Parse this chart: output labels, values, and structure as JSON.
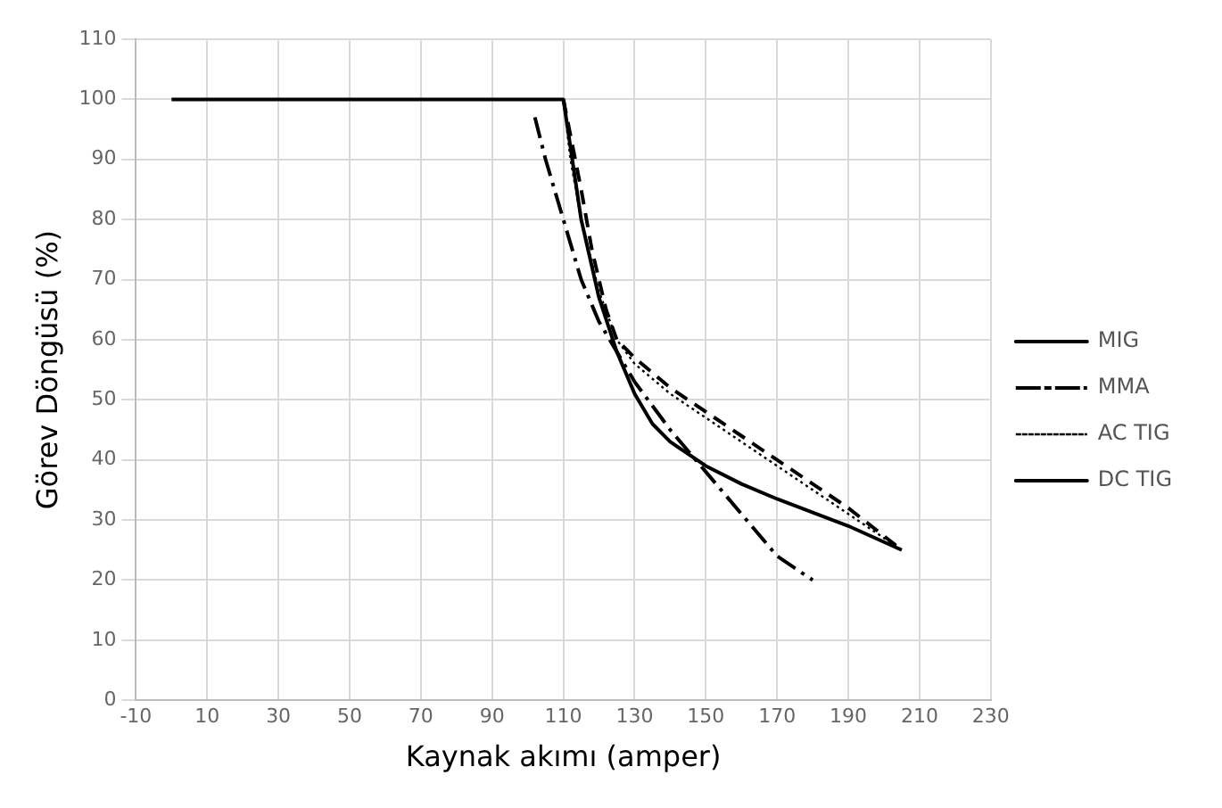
{
  "chart_data": {
    "type": "line",
    "xlabel": "Kaynak akımı (amper)",
    "ylabel": "Görev Döngüsü (%)",
    "xlim": [
      -10,
      230
    ],
    "xticks": [
      -10,
      10,
      30,
      50,
      70,
      90,
      110,
      130,
      150,
      170,
      190,
      210,
      230
    ],
    "ylim": [
      0,
      110
    ],
    "yticks": [
      0,
      10,
      20,
      30,
      40,
      50,
      60,
      70,
      80,
      90,
      100,
      110
    ],
    "grid": true,
    "legend": "right",
    "marker": "none",
    "series": [
      {
        "name": "MIG",
        "color": "#000000",
        "line_style": "solid",
        "x": [
          0,
          110,
          115,
          120,
          125,
          130,
          135,
          140,
          150,
          160,
          170,
          190,
          205
        ],
        "values": [
          100,
          100,
          80,
          67,
          58,
          51,
          46,
          43,
          39,
          36,
          33.5,
          29,
          25
        ]
      },
      {
        "name": "MMA",
        "color": "#000000",
        "line_style": "dashdot",
        "x": [
          102,
          105,
          110,
          115,
          120,
          125,
          130,
          140,
          150,
          160,
          170,
          180
        ],
        "values": [
          97,
          90,
          80,
          70,
          63,
          58,
          53,
          45,
          38,
          31,
          24,
          20
        ]
      },
      {
        "name": "AC TIG",
        "color": "#000000",
        "line_style": "dotted",
        "x": [
          110,
          112,
          115,
          120,
          125,
          130,
          140,
          150,
          160,
          170,
          180,
          190,
          205
        ],
        "values": [
          100,
          90,
          80,
          68,
          60,
          56,
          51,
          47,
          43,
          39,
          35,
          31,
          25
        ]
      },
      {
        "name": "DC TIG",
        "color": "#000000",
        "line_style": "dashed",
        "x": [
          110,
          115,
          118,
          122,
          125,
          130,
          140,
          150,
          160,
          170,
          180,
          190,
          205
        ],
        "values": [
          100,
          85,
          75,
          65,
          60,
          57,
          52,
          48,
          44,
          40,
          36,
          32,
          25
        ]
      }
    ]
  }
}
